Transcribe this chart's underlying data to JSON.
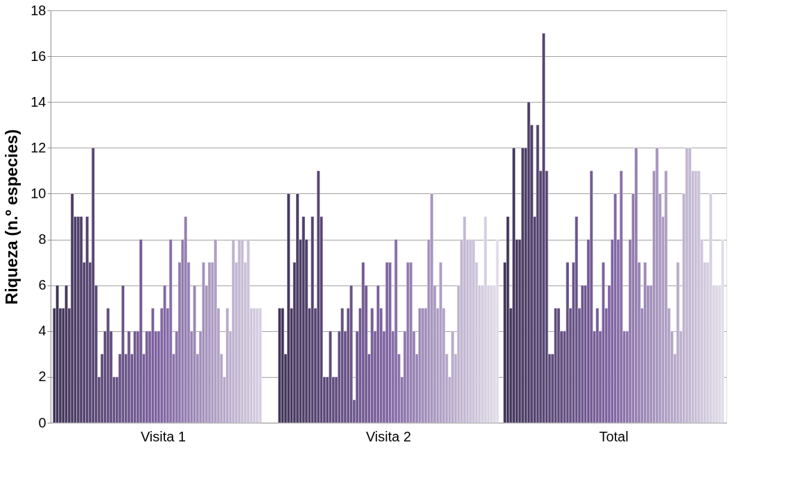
{
  "chart_data": {
    "type": "bar",
    "ylabel": "Riqueza (n.º especies)",
    "categories": [
      "Visita 1",
      "Visita 2",
      "Total"
    ],
    "ylim": [
      0,
      18
    ],
    "yticks": [
      0,
      2,
      4,
      6,
      8,
      10,
      12,
      14,
      16,
      18
    ],
    "grid": "y",
    "series": [
      {
        "color": "#403458",
        "values": [
          5,
          5,
          7
        ]
      },
      {
        "color": "#42355a",
        "values": [
          6,
          5,
          9
        ]
      },
      {
        "color": "#44375c",
        "values": [
          5,
          3,
          5
        ]
      },
      {
        "color": "#45385e",
        "values": [
          5,
          10,
          12
        ]
      },
      {
        "color": "#473960",
        "values": [
          6,
          5,
          8
        ]
      },
      {
        "color": "#493b62",
        "values": [
          5,
          7,
          8
        ]
      },
      {
        "color": "#4b3c64",
        "values": [
          10,
          10,
          12
        ]
      },
      {
        "color": "#4c3d66",
        "values": [
          9,
          8,
          12
        ]
      },
      {
        "color": "#4e3f68",
        "values": [
          9,
          9,
          14
        ]
      },
      {
        "color": "#50406b",
        "values": [
          9,
          8,
          13
        ]
      },
      {
        "color": "#52416d",
        "values": [
          7,
          5,
          9
        ]
      },
      {
        "color": "#54436f",
        "values": [
          9,
          9,
          13
        ]
      },
      {
        "color": "#554471",
        "values": [
          7,
          5,
          11
        ]
      },
      {
        "color": "#574573",
        "values": [
          12,
          11,
          17
        ]
      },
      {
        "color": "#594775",
        "values": [
          6,
          9,
          11
        ]
      },
      {
        "color": "#5b4877",
        "values": [
          2,
          2,
          3
        ]
      },
      {
        "color": "#5c4979",
        "values": [
          3,
          2,
          3
        ]
      },
      {
        "color": "#5e4b7b",
        "values": [
          4,
          4,
          5
        ]
      },
      {
        "color": "#604c7d",
        "values": [
          5,
          2,
          5
        ]
      },
      {
        "color": "#624d7f",
        "values": [
          4,
          2,
          4
        ]
      },
      {
        "color": "#644f81",
        "values": [
          2,
          4,
          4
        ]
      },
      {
        "color": "#655083",
        "values": [
          2,
          5,
          7
        ]
      },
      {
        "color": "#675185",
        "values": [
          3,
          4,
          5
        ]
      },
      {
        "color": "#695387",
        "values": [
          6,
          5,
          7
        ]
      },
      {
        "color": "#6b5489",
        "values": [
          3,
          6,
          9
        ]
      },
      {
        "color": "#6c558b",
        "values": [
          4,
          1,
          5
        ]
      },
      {
        "color": "#6e578d",
        "values": [
          3,
          4,
          6
        ]
      },
      {
        "color": "#705890",
        "values": [
          4,
          5,
          6
        ]
      },
      {
        "color": "#725992",
        "values": [
          4,
          7,
          8
        ]
      },
      {
        "color": "#745b94",
        "values": [
          8,
          6,
          11
        ]
      },
      {
        "color": "#755c96",
        "values": [
          3,
          3,
          4
        ]
      },
      {
        "color": "#775d98",
        "values": [
          4,
          5,
          5
        ]
      },
      {
        "color": "#795f9a",
        "values": [
          4,
          4,
          4
        ]
      },
      {
        "color": "#7b609c",
        "values": [
          5,
          6,
          7
        ]
      },
      {
        "color": "#7c619e",
        "values": [
          4,
          5,
          5
        ]
      },
      {
        "color": "#7e63a0",
        "values": [
          4,
          4,
          6
        ]
      },
      {
        "color": "#8064a2",
        "values": [
          5,
          7,
          8
        ]
      },
      {
        "color": "#8367a4",
        "values": [
          6,
          7,
          10
        ]
      },
      {
        "color": "#856aa6",
        "values": [
          5,
          4,
          8
        ]
      },
      {
        "color": "#886ea8",
        "values": [
          8,
          8,
          11
        ]
      },
      {
        "color": "#8a71aa",
        "values": [
          3,
          3,
          4
        ]
      },
      {
        "color": "#8d74ab",
        "values": [
          4,
          2,
          4
        ]
      },
      {
        "color": "#9077ad",
        "values": [
          7,
          4,
          8
        ]
      },
      {
        "color": "#927baf",
        "values": [
          8,
          7,
          10
        ]
      },
      {
        "color": "#957eb1",
        "values": [
          9,
          7,
          12
        ]
      },
      {
        "color": "#9781b3",
        "values": [
          7,
          4,
          7
        ]
      },
      {
        "color": "#9a84b5",
        "values": [
          4,
          3,
          5
        ]
      },
      {
        "color": "#9d88b7",
        "values": [
          6,
          5,
          7
        ]
      },
      {
        "color": "#9f8bb9",
        "values": [
          3,
          5,
          6
        ]
      },
      {
        "color": "#a28ebb",
        "values": [
          4,
          5,
          6
        ]
      },
      {
        "color": "#a491bc",
        "values": [
          7,
          8,
          11
        ]
      },
      {
        "color": "#a795be",
        "values": [
          6,
          10,
          12
        ]
      },
      {
        "color": "#aa98c0",
        "values": [
          7,
          6,
          10
        ]
      },
      {
        "color": "#ac9bc2",
        "values": [
          7,
          5,
          9
        ]
      },
      {
        "color": "#af9ec4",
        "values": [
          8,
          7,
          11
        ]
      },
      {
        "color": "#b1a2c6",
        "values": [
          5,
          5,
          5
        ]
      },
      {
        "color": "#b4a5c8",
        "values": [
          3,
          3,
          4
        ]
      },
      {
        "color": "#b6a8ca",
        "values": [
          2,
          2,
          3
        ]
      },
      {
        "color": "#b9abcc",
        "values": [
          5,
          4,
          7
        ]
      },
      {
        "color": "#bcafcd",
        "values": [
          4,
          3,
          4
        ]
      },
      {
        "color": "#beb2cf",
        "values": [
          8,
          6,
          10
        ]
      },
      {
        "color": "#c1b5d1",
        "values": [
          7,
          8,
          12
        ]
      },
      {
        "color": "#c3b8d3",
        "values": [
          8,
          9,
          12
        ]
      },
      {
        "color": "#c6bcd5",
        "values": [
          8,
          8,
          11
        ]
      },
      {
        "color": "#c9bfd7",
        "values": [
          7,
          8,
          11
        ]
      },
      {
        "color": "#cbc2d9",
        "values": [
          8,
          8,
          11
        ]
      },
      {
        "color": "#cec5db",
        "values": [
          5,
          7,
          8
        ]
      },
      {
        "color": "#d0c9dd",
        "values": [
          5,
          6,
          7
        ]
      },
      {
        "color": "#d3ccdf",
        "values": [
          5,
          6,
          7
        ]
      },
      {
        "color": "#d6cfe0",
        "values": [
          5,
          9,
          10
        ]
      },
      {
        "color": "#d8d2e2",
        "values": [
          null,
          6,
          6
        ]
      },
      {
        "color": "#dbd6e4",
        "values": [
          null,
          6,
          6
        ]
      },
      {
        "color": "#ddd9e6",
        "values": [
          null,
          6,
          6
        ]
      },
      {
        "color": "#e0dce8",
        "values": [
          null,
          8,
          8
        ]
      }
    ]
  }
}
